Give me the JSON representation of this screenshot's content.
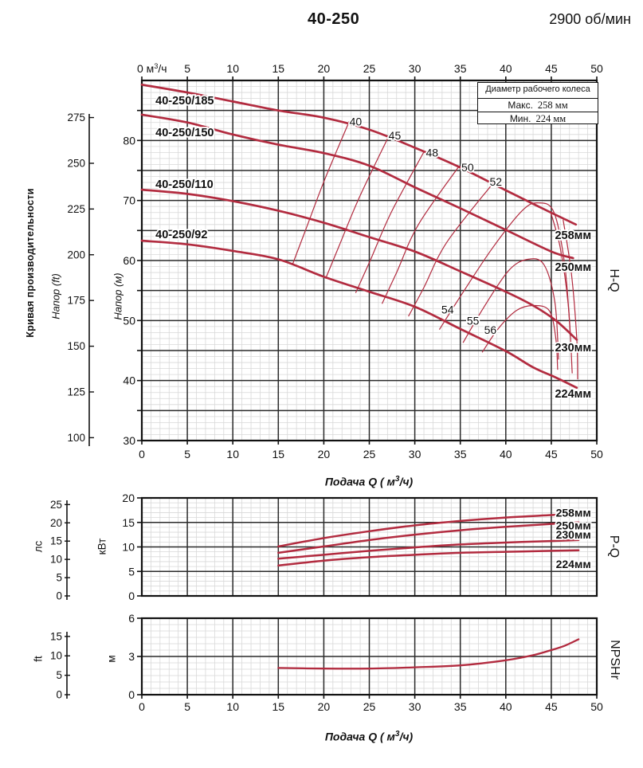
{
  "header": {
    "title": "40-250",
    "speed": "2900 об/мин"
  },
  "impeller_box": {
    "title": "Диаметр рабочего колеса",
    "max_label": "Макс.",
    "max_value": "258 мм",
    "min_label": "Мин.",
    "min_value": "224 мм"
  },
  "labels": {
    "left_outer": "Кривая производительности",
    "head_ft": "Напор (ft)",
    "head_m": "Напор (м)",
    "hq": "H-Q",
    "pq": "P-Q",
    "npshr": "NPSHr",
    "hp": "лс",
    "kw": "кВт",
    "ft": "ft",
    "m": "м",
    "flow_caption": {
      "prefix": "Подача Q ( м",
      "sup": "3",
      "suffix": "/ч)"
    },
    "flow_unit_first_tick": {
      "prefix": "0 м",
      "sup": "3",
      "suffix": "/ч"
    }
  },
  "chart_data": [
    {
      "id": "hq",
      "type": "line",
      "side_label": "H-Q",
      "x_axis": {
        "range": [
          0,
          50
        ],
        "ticks": [
          0,
          5,
          10,
          15,
          20,
          25,
          30,
          35,
          40,
          45,
          50
        ],
        "minor_step": 1
      },
      "y_axis_m": {
        "label": "Напор (м)",
        "range": [
          30,
          90
        ],
        "labeled_ticks": [
          30,
          40,
          50,
          60,
          70,
          80
        ],
        "major_step": 5,
        "minor_step": 1
      },
      "y_axis_ft": {
        "label": "Напор (ft)",
        "ticks": [
          100,
          125,
          150,
          175,
          200,
          225,
          250,
          275
        ]
      },
      "series": [
        {
          "name": "40-250/185",
          "impeller": "258мм",
          "points": [
            [
              0,
              89.3
            ],
            [
              5,
              88.0
            ],
            [
              10,
              86.5
            ],
            [
              15,
              85.0
            ],
            [
              20,
              83.8
            ],
            [
              25,
              81.8
            ],
            [
              30,
              78.8
            ],
            [
              35,
              75.5
            ],
            [
              40,
              71.7
            ],
            [
              44,
              68.7
            ],
            [
              47.7,
              66.0
            ]
          ]
        },
        {
          "name": "40-250/150",
          "impeller": "250мм",
          "points": [
            [
              0,
              84.3
            ],
            [
              5,
              83.0
            ],
            [
              10,
              81.0
            ],
            [
              15,
              79.3
            ],
            [
              20,
              77.9
            ],
            [
              25,
              75.8
            ],
            [
              30,
              72.2
            ],
            [
              35,
              68.7
            ],
            [
              40,
              65.1
            ],
            [
              45,
              61.5
            ],
            [
              47.4,
              60.4
            ]
          ]
        },
        {
          "name": "40-250/110",
          "impeller": "230мм",
          "points": [
            [
              0,
              71.8
            ],
            [
              5,
              71.1
            ],
            [
              10,
              69.9
            ],
            [
              15,
              68.3
            ],
            [
              20,
              66.3
            ],
            [
              25,
              63.9
            ],
            [
              30,
              61.5
            ],
            [
              35,
              58.2
            ],
            [
              40,
              54.8
            ],
            [
              43,
              52.5
            ],
            [
              45.5,
              50.0
            ],
            [
              47.8,
              46.8
            ]
          ]
        },
        {
          "name": "40-250/92",
          "impeller": "224мм",
          "points": [
            [
              0,
              63.3
            ],
            [
              5,
              62.7
            ],
            [
              10,
              61.6
            ],
            [
              15,
              60.2
            ],
            [
              20,
              57.3
            ],
            [
              25,
              54.8
            ],
            [
              30,
              52.3
            ],
            [
              35,
              48.6
            ],
            [
              40,
              44.9
            ],
            [
              43,
              42.2
            ],
            [
              45.5,
              40.5
            ],
            [
              47.8,
              38.8
            ]
          ]
        }
      ],
      "series_label_pos": [
        [
          1.5,
          86.0
        ],
        [
          1.5,
          80.7
        ],
        [
          1.5,
          72.1
        ],
        [
          1.5,
          63.7
        ]
      ],
      "impeller_label_pos": [
        [
          45.4,
          63.6
        ],
        [
          45.4,
          58.3
        ],
        [
          45.4,
          44.9
        ],
        [
          45.4,
          37.2
        ]
      ],
      "efficiency": {
        "labels": [
          {
            "v": "40",
            "x": 23.5,
            "y": 82.5
          },
          {
            "v": "45",
            "x": 27.8,
            "y": 80.2
          },
          {
            "v": "48",
            "x": 31.9,
            "y": 77.3
          },
          {
            "v": "50",
            "x": 35.8,
            "y": 74.9
          },
          {
            "v": "52",
            "x": 38.9,
            "y": 72.5
          },
          {
            "v": "54",
            "x": 33.6,
            "y": 51.2
          },
          {
            "v": "55",
            "x": 36.4,
            "y": 49.3
          },
          {
            "v": "56",
            "x": 38.3,
            "y": 47.8
          }
        ],
        "contours": [
          {
            "name": "eff-40",
            "pts": [
              [
                16.6,
                59.5
              ],
              [
                18.1,
                65.5
              ],
              [
                20.1,
                73.5
              ],
              [
                22.8,
                83.2
              ]
            ]
          },
          {
            "name": "eff-45",
            "pts": [
              [
                20.2,
                57.0
              ],
              [
                21.7,
                62.5
              ],
              [
                23.9,
                70.5
              ],
              [
                27.0,
                80.3
              ]
            ]
          },
          {
            "name": "eff-48",
            "pts": [
              [
                23.5,
                54.6
              ],
              [
                25.1,
                60.0
              ],
              [
                27.4,
                68.0
              ],
              [
                31.0,
                78.1
              ]
            ]
          },
          {
            "name": "eff-50",
            "pts": [
              [
                26.4,
                52.8
              ],
              [
                28.0,
                58.0
              ],
              [
                30.4,
                66.0
              ],
              [
                34.9,
                75.8
              ]
            ]
          },
          {
            "name": "eff-52",
            "pts": [
              [
                29.3,
                50.7
              ],
              [
                31.0,
                55.5
              ],
              [
                33.5,
                63.0
              ],
              [
                38.5,
                72.7
              ]
            ]
          },
          {
            "name": "eff-54-loop",
            "pts": [
              [
                32.7,
                48.5
              ],
              [
                35.0,
                54.0
              ],
              [
                38.5,
                62.0
              ],
              [
                41.8,
                68.3
              ],
              [
                43.6,
                69.6
              ],
              [
                45.3,
                68.0
              ],
              [
                46.5,
                59.0
              ],
              [
                47.1,
                47.5
              ]
            ]
          },
          {
            "name": "eff-55-loop",
            "pts": [
              [
                35.3,
                46.3
              ],
              [
                37.5,
                52.0
              ],
              [
                40.3,
                58.3
              ],
              [
                42.4,
                60.2
              ],
              [
                44.2,
                59.3
              ],
              [
                45.4,
                53.0
              ],
              [
                45.8,
                43.5
              ]
            ]
          },
          {
            "name": "eff-56-loop",
            "pts": [
              [
                37.4,
                44.7
              ],
              [
                39.2,
                48.7
              ],
              [
                41.2,
                51.7
              ],
              [
                43.1,
                52.5
              ],
              [
                44.8,
                51.6
              ],
              [
                45.5,
                47.0
              ],
              [
                45.7,
                41.8
              ]
            ]
          },
          {
            "name": "eff-52-right",
            "pts": [
              [
                44.9,
                68.2
              ],
              [
                46.0,
                62.0
              ],
              [
                46.9,
                52.0
              ],
              [
                47.3,
                41.2
              ]
            ]
          },
          {
            "name": "eff-50-right",
            "pts": [
              [
                46.3,
                66.8
              ],
              [
                47.2,
                58.0
              ],
              [
                47.8,
                47.0
              ],
              [
                47.9,
                40.2
              ]
            ]
          }
        ]
      }
    },
    {
      "id": "pq",
      "type": "line",
      "side_label": "P-Q",
      "x_axis": {
        "range": [
          0,
          50
        ],
        "minor_step": 1
      },
      "y_axis_kw": {
        "label": "кВт",
        "range": [
          0,
          20
        ],
        "ticks": [
          0,
          5,
          10,
          15,
          20
        ],
        "minor_step": 1
      },
      "y_axis_hp": {
        "label": "лс",
        "ticks": [
          0,
          5,
          10,
          15,
          20,
          25
        ]
      },
      "series": [
        {
          "impeller": "258мм",
          "points": [
            [
              15,
              10.1
            ],
            [
              20,
              11.8
            ],
            [
              25,
              13.2
            ],
            [
              30,
              14.4
            ],
            [
              35,
              15.3
            ],
            [
              40,
              16.0
            ],
            [
              45,
              16.5
            ],
            [
              48,
              16.8
            ]
          ]
        },
        {
          "impeller": "250мм",
          "points": [
            [
              15,
              8.8
            ],
            [
              20,
              10.1
            ],
            [
              25,
              11.4
            ],
            [
              30,
              12.5
            ],
            [
              35,
              13.4
            ],
            [
              40,
              14.1
            ],
            [
              45,
              14.7
            ],
            [
              48,
              15.0
            ]
          ]
        },
        {
          "impeller": "230мм",
          "points": [
            [
              15,
              7.6
            ],
            [
              20,
              8.4
            ],
            [
              25,
              9.2
            ],
            [
              30,
              9.9
            ],
            [
              35,
              10.5
            ],
            [
              40,
              10.9
            ],
            [
              45,
              11.2
            ],
            [
              48,
              11.4
            ]
          ]
        },
        {
          "impeller": "224мм",
          "points": [
            [
              15,
              6.2
            ],
            [
              20,
              7.2
            ],
            [
              25,
              7.9
            ],
            [
              30,
              8.4
            ],
            [
              35,
              8.8
            ],
            [
              40,
              9.0
            ],
            [
              45,
              9.2
            ],
            [
              48,
              9.3
            ]
          ]
        }
      ],
      "impeller_label_pos": [
        [
          45.5,
          16.2
        ],
        [
          45.5,
          13.6
        ],
        [
          45.5,
          11.7
        ],
        [
          45.5,
          5.7
        ]
      ]
    },
    {
      "id": "npshr",
      "type": "line",
      "side_label": "NPSHr",
      "x_axis": {
        "range": [
          0,
          50
        ],
        "ticks": [
          0,
          5,
          10,
          15,
          20,
          25,
          30,
          35,
          40,
          45,
          50
        ],
        "minor_step": 1
      },
      "y_axis_m": {
        "label": "м",
        "range": [
          0,
          6
        ],
        "ticks": [
          0,
          3,
          6
        ],
        "minor_step": 0.5
      },
      "y_axis_ft": {
        "label": "ft",
        "ticks": [
          0,
          5,
          10,
          15
        ]
      },
      "series": [
        {
          "name": "NPSHr",
          "points": [
            [
              15,
              2.1
            ],
            [
              20,
              2.05
            ],
            [
              25,
              2.05
            ],
            [
              30,
              2.15
            ],
            [
              35,
              2.3
            ],
            [
              40,
              2.7
            ],
            [
              43,
              3.1
            ],
            [
              45,
              3.5
            ],
            [
              46.5,
              3.85
            ],
            [
              48,
              4.35
            ]
          ]
        }
      ]
    }
  ]
}
